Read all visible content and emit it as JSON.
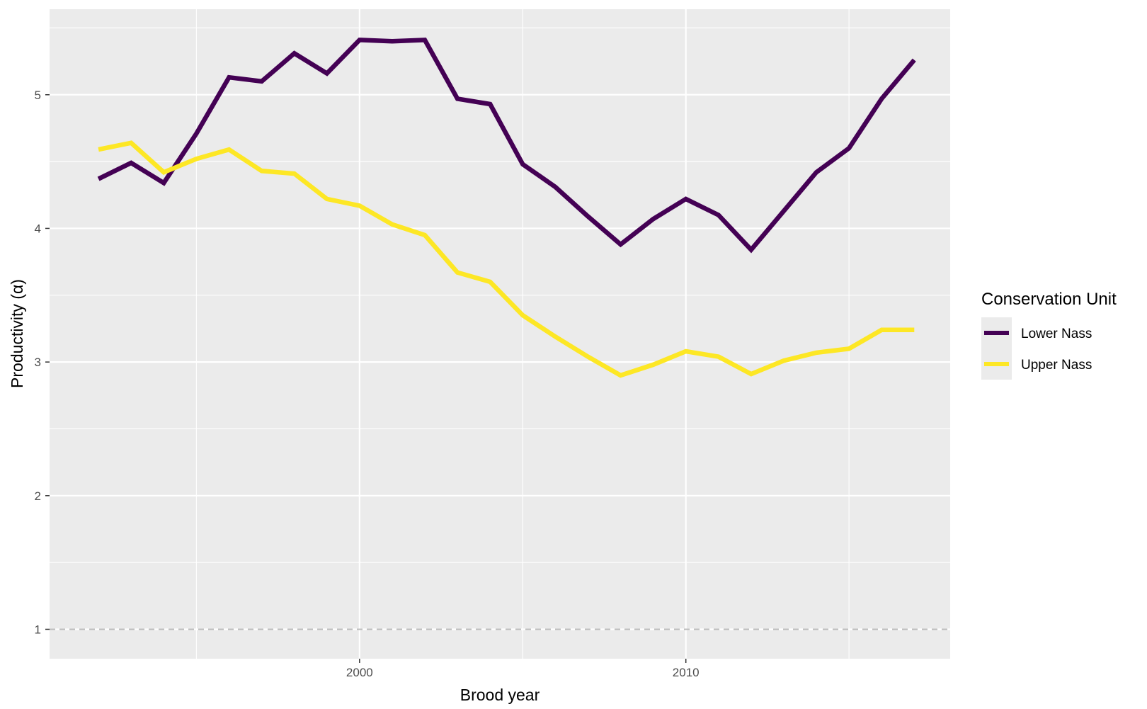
{
  "chart_data": {
    "type": "line",
    "xlabel": "Brood year",
    "ylabel": "Productivity (α)",
    "xlim": [
      1990.5,
      2018.1
    ],
    "ylim": [
      0.78,
      5.64
    ],
    "x_ticks": [
      2000,
      2010
    ],
    "x_minor_ticks": [
      1995,
      2005,
      2015
    ],
    "y_ticks": [
      1,
      2,
      3,
      4,
      5
    ],
    "y_minor_ticks": [
      1.5,
      2.5,
      3.5,
      4.5,
      5.5
    ],
    "grid": true,
    "reference_line": {
      "y": 1,
      "style": "dashed",
      "color": "#bdbdbd"
    },
    "legend": {
      "title": "Conservation Unit",
      "position": "right"
    },
    "panel_background": "#ebebeb",
    "x": [
      1992,
      1993,
      1994,
      1995,
      1996,
      1997,
      1998,
      1999,
      2000,
      2001,
      2002,
      2003,
      2004,
      2005,
      2006,
      2007,
      2008,
      2009,
      2010,
      2011,
      2012,
      2013,
      2014,
      2015,
      2016,
      2017
    ],
    "series": [
      {
        "name": "Lower Nass",
        "color": "#440154",
        "values": [
          4.37,
          4.49,
          4.34,
          4.71,
          5.13,
          5.1,
          5.31,
          5.16,
          5.41,
          5.4,
          5.41,
          4.97,
          4.93,
          4.48,
          4.31,
          4.09,
          3.88,
          4.07,
          4.22,
          4.1,
          3.84,
          4.13,
          4.42,
          4.6,
          4.97,
          5.26
        ]
      },
      {
        "name": "Upper Nass",
        "color": "#fde725",
        "values": [
          4.59,
          4.64,
          4.42,
          4.52,
          4.59,
          4.43,
          4.41,
          4.22,
          4.17,
          4.03,
          3.95,
          3.67,
          3.6,
          3.35,
          3.19,
          3.04,
          2.9,
          2.98,
          3.08,
          3.04,
          2.91,
          3.01,
          3.07,
          3.1,
          3.24,
          3.24
        ]
      }
    ]
  }
}
